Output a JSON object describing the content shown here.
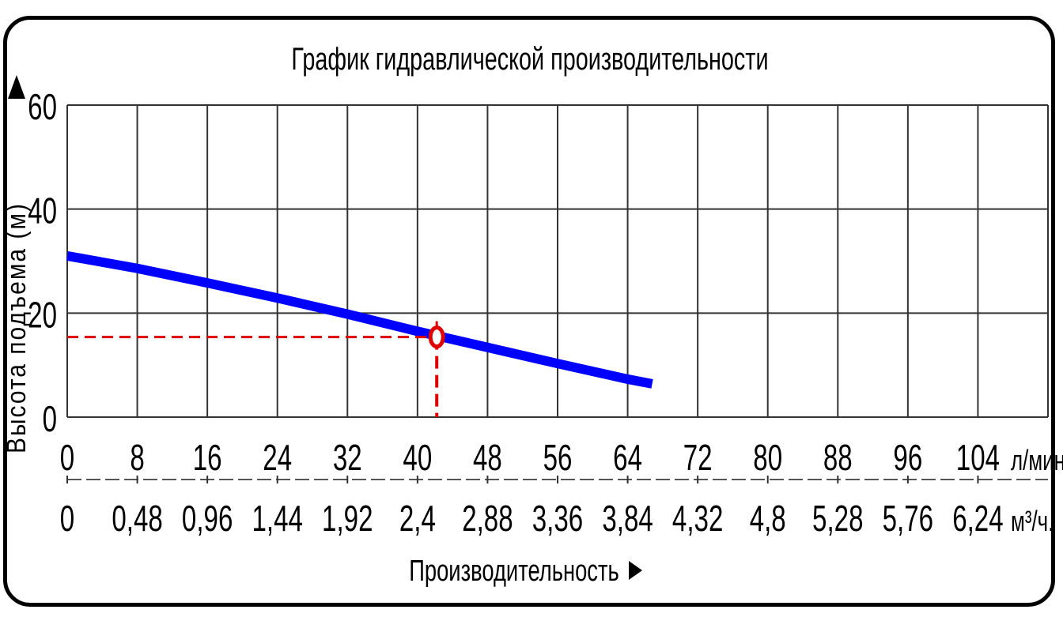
{
  "chart_data": {
    "type": "line",
    "title": "График гидравлической производительности",
    "ylabel": "Высота подъема (м)",
    "xlabel": "Производительность",
    "ylim": [
      0,
      60
    ],
    "xlim": [
      0,
      112
    ],
    "grid": true,
    "y_ticks": [
      "0",
      "20",
      "40",
      "60"
    ],
    "x_ticks_primary": [
      "0",
      "8",
      "16",
      "24",
      "32",
      "40",
      "48",
      "56",
      "64",
      "72",
      "80",
      "88",
      "96",
      "104"
    ],
    "x_unit_primary": "л/мин.",
    "x_ticks_secondary": [
      "0",
      "0,48",
      "0,96",
      "1,44",
      "1,92",
      "2,4",
      "2,88",
      "3,36",
      "3,84",
      "4,32",
      "4,8",
      "5,28",
      "5,76",
      "6,24"
    ],
    "x_unit_secondary": "м³/ч.",
    "series": [
      {
        "color": "#0000ff",
        "x": [
          0,
          8,
          16,
          24,
          32,
          40,
          48,
          56,
          64,
          66.8
        ],
        "y": [
          31,
          28.6,
          25.8,
          22.9,
          19.8,
          16.5,
          13.4,
          10.3,
          7.3,
          6.4
        ]
      }
    ],
    "operating_point": {
      "x": 42.2,
      "y": 15.4,
      "color": "#e00000"
    }
  }
}
